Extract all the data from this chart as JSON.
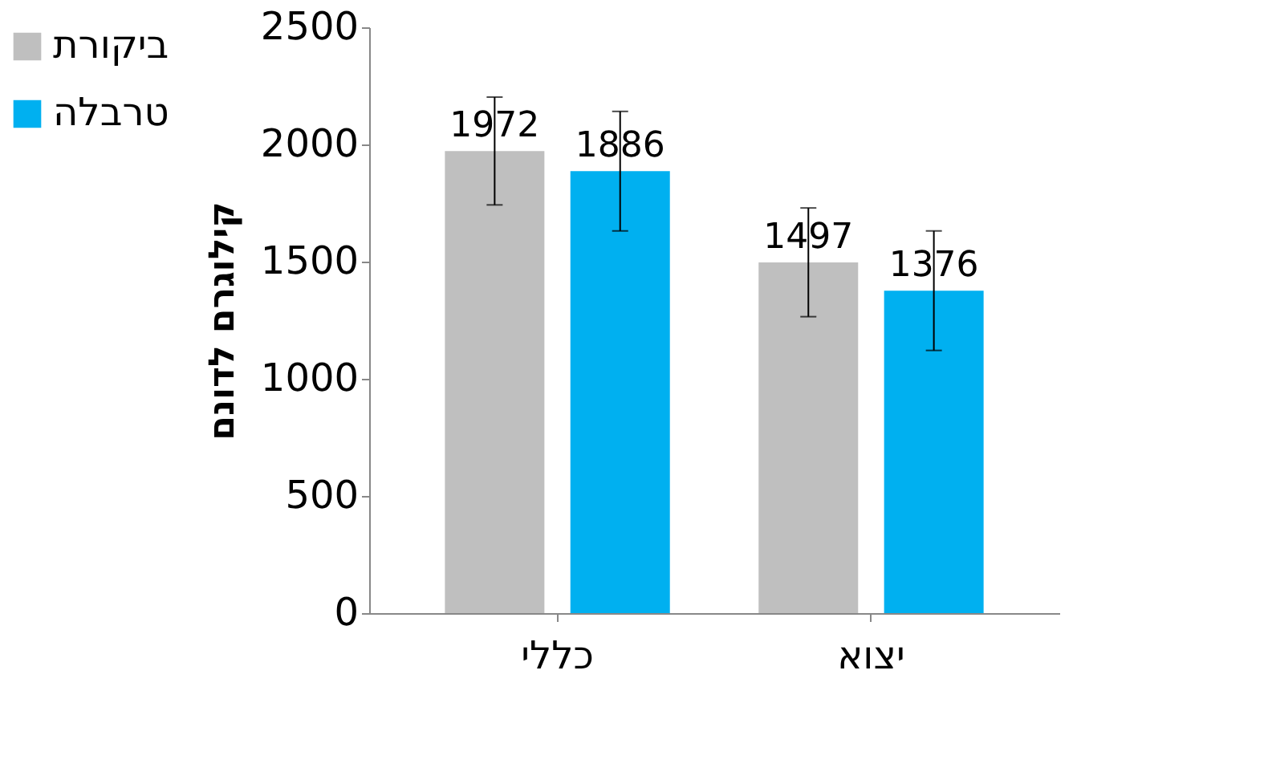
{
  "chart_data": {
    "type": "bar",
    "ylabel": "קילוגרם לדונם",
    "categories": [
      "כללי",
      "יצוא"
    ],
    "series": [
      {
        "name": "ביקורת",
        "color": "#bfbfbf",
        "values": [
          1972,
          1497
        ],
        "errors": [
          230,
          232
        ]
      },
      {
        "name": "טרבלה",
        "color": "#00b0f0",
        "values": [
          1886,
          1376
        ],
        "errors": [
          255,
          255
        ]
      }
    ],
    "ylim": [
      0,
      2500
    ],
    "yticks": [
      0,
      500,
      1000,
      1500,
      2000,
      2500
    ],
    "grid": false,
    "legend": "left",
    "data_labels": true
  }
}
